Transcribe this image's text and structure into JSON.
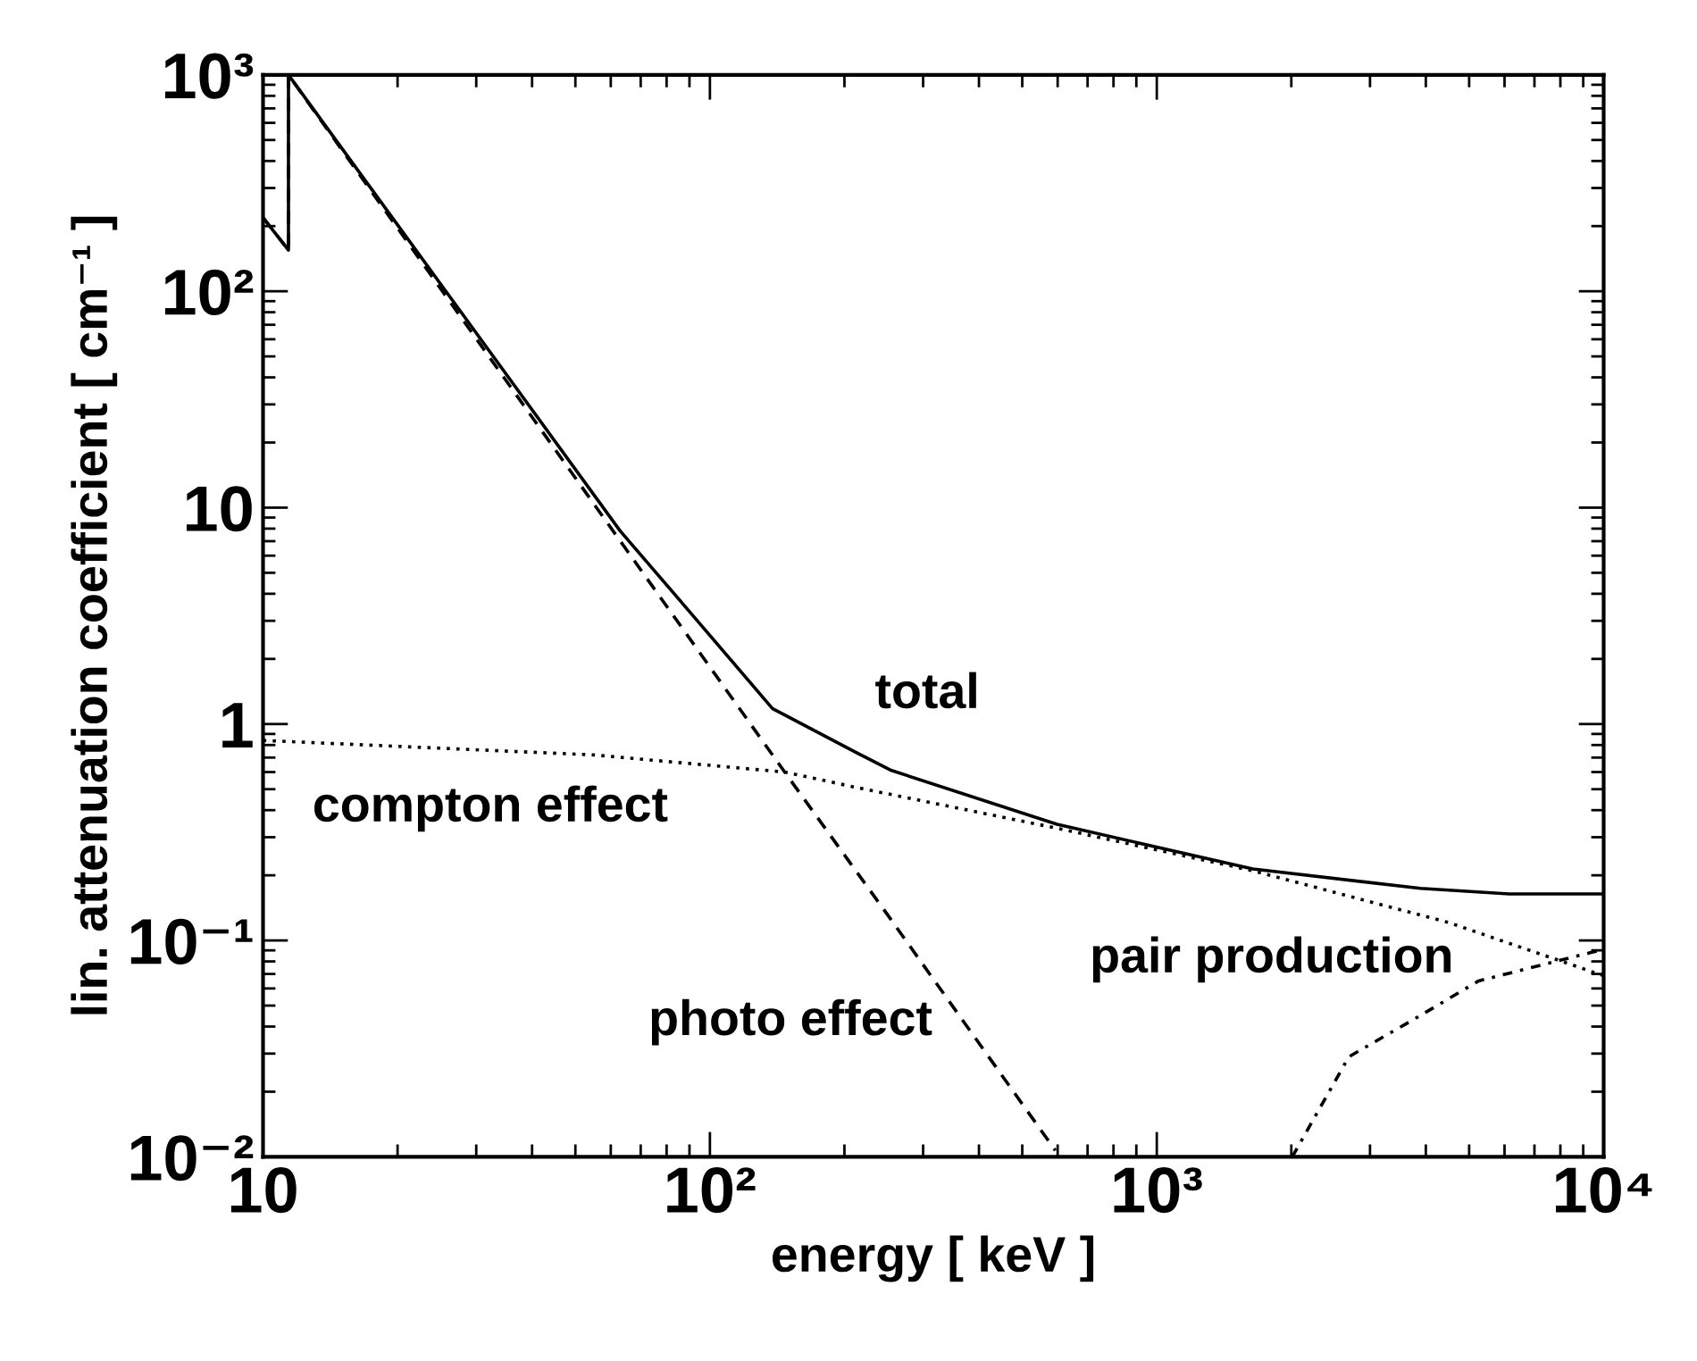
{
  "chart_data": {
    "type": "line",
    "xlabel": "energy [ keV ]",
    "ylabel": "lin. attenuation coefficient [ cm⁻¹ ]",
    "log": "xy",
    "grid": false,
    "legend": false,
    "marker": "none",
    "xlim": [
      10,
      10000
    ],
    "ylim": [
      0.01,
      1000
    ],
    "xticks": [
      {
        "value": 10,
        "label": "10"
      },
      {
        "value": 20,
        "label": null
      },
      {
        "value": 30,
        "label": null
      },
      {
        "value": 40,
        "label": null
      },
      {
        "value": 50,
        "label": null
      },
      {
        "value": 60,
        "label": null
      },
      {
        "value": 70,
        "label": null
      },
      {
        "value": 80,
        "label": null
      },
      {
        "value": 90,
        "label": null
      },
      {
        "value": 100,
        "label": "10²"
      },
      {
        "value": 200,
        "label": null
      },
      {
        "value": 300,
        "label": null
      },
      {
        "value": 400,
        "label": null
      },
      {
        "value": 500,
        "label": null
      },
      {
        "value": 600,
        "label": null
      },
      {
        "value": 700,
        "label": null
      },
      {
        "value": 800,
        "label": null
      },
      {
        "value": 900,
        "label": null
      },
      {
        "value": 1000,
        "label": "10³"
      },
      {
        "value": 2000,
        "label": null
      },
      {
        "value": 3000,
        "label": null
      },
      {
        "value": 4000,
        "label": null
      },
      {
        "value": 5000,
        "label": null
      },
      {
        "value": 6000,
        "label": null
      },
      {
        "value": 7000,
        "label": null
      },
      {
        "value": 8000,
        "label": null
      },
      {
        "value": 9000,
        "label": null
      },
      {
        "value": 10000,
        "label": "10⁴"
      }
    ],
    "yticks": [
      {
        "value": 0.01,
        "label": "10⁻²"
      },
      {
        "value": 0.02,
        "label": null
      },
      {
        "value": 0.03,
        "label": null
      },
      {
        "value": 0.04,
        "label": null
      },
      {
        "value": 0.05,
        "label": null
      },
      {
        "value": 0.06,
        "label": null
      },
      {
        "value": 0.07,
        "label": null
      },
      {
        "value": 0.08,
        "label": null
      },
      {
        "value": 0.09,
        "label": null
      },
      {
        "value": 0.1,
        "label": "10⁻¹"
      },
      {
        "value": 0.2,
        "label": null
      },
      {
        "value": 0.3,
        "label": null
      },
      {
        "value": 0.4,
        "label": null
      },
      {
        "value": 0.5,
        "label": null
      },
      {
        "value": 0.6,
        "label": null
      },
      {
        "value": 0.7,
        "label": null
      },
      {
        "value": 0.8,
        "label": null
      },
      {
        "value": 0.9,
        "label": null
      },
      {
        "value": 1,
        "label": "1"
      },
      {
        "value": 2,
        "label": null
      },
      {
        "value": 3,
        "label": null
      },
      {
        "value": 4,
        "label": null
      },
      {
        "value": 5,
        "label": null
      },
      {
        "value": 6,
        "label": null
      },
      {
        "value": 7,
        "label": null
      },
      {
        "value": 8,
        "label": null
      },
      {
        "value": 9,
        "label": null
      },
      {
        "value": 10,
        "label": "10"
      },
      {
        "value": 20,
        "label": null
      },
      {
        "value": 30,
        "label": null
      },
      {
        "value": 40,
        "label": null
      },
      {
        "value": 50,
        "label": null
      },
      {
        "value": 60,
        "label": null
      },
      {
        "value": 70,
        "label": null
      },
      {
        "value": 80,
        "label": null
      },
      {
        "value": 90,
        "label": null
      },
      {
        "value": 100,
        "label": "10²"
      },
      {
        "value": 200,
        "label": null
      },
      {
        "value": 300,
        "label": null
      },
      {
        "value": 400,
        "label": null
      },
      {
        "value": 500,
        "label": null
      },
      {
        "value": 600,
        "label": null
      },
      {
        "value": 700,
        "label": null
      },
      {
        "value": 800,
        "label": null
      },
      {
        "value": 900,
        "label": null
      },
      {
        "value": 1000,
        "label": "10³"
      }
    ],
    "series": [
      {
        "name": "total",
        "color": "#000000",
        "line_style": "solid",
        "x": [
          10,
          11.4,
          11.4,
          63,
          93,
          138,
          212,
          255,
          598,
          1640,
          3890,
          6150,
          10000
        ],
        "values": [
          219,
          155,
          1000,
          7.8,
          3.06,
          1.18,
          0.74,
          0.61,
          0.344,
          0.214,
          0.174,
          0.164,
          0.164
        ]
      },
      {
        "name": "photo effect",
        "color": "#000000",
        "line_style": "dashed",
        "x": [
          10,
          11.4,
          11.4,
          147,
          250,
          593
        ],
        "values": [
          219,
          155,
          1000,
          0.6,
          0.131,
          0.0107
        ]
      },
      {
        "name": "compton effect",
        "color": "#000000",
        "line_style": "dotted",
        "x": [
          10,
          55,
          147,
          212,
          598,
          1640,
          4500,
          10000
        ],
        "values": [
          0.84,
          0.72,
          0.6,
          0.51,
          0.33,
          0.21,
          0.121,
          0.0687
        ]
      },
      {
        "name": "pair production",
        "color": "#000000",
        "line_style": "dashdot",
        "x": [
          2010,
          2690,
          3890,
          5250,
          10000
        ],
        "values": [
          0.01,
          0.029,
          0.045,
          0.065,
          0.091
        ]
      }
    ]
  }
}
